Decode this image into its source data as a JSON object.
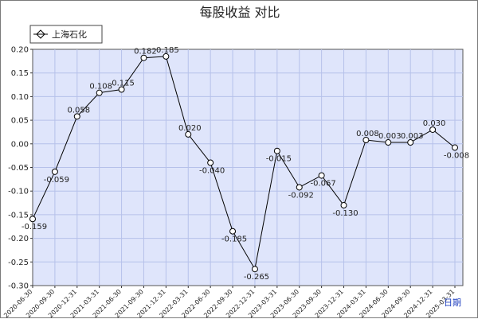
{
  "chart_data": {
    "type": "line",
    "title": "每股收益  对比",
    "xlabel": "日期",
    "ylabel": "",
    "ylim": [
      -0.3,
      0.2
    ],
    "yticks": [
      "0.20",
      "0.15",
      "0.10",
      "0.05",
      "0.00",
      "-0.05",
      "-0.10",
      "-0.15",
      "-0.20",
      "-0.25",
      "-0.30"
    ],
    "grid": true,
    "legend_position": "top-left",
    "colors": {
      "line": "#000000",
      "plot_bg": "#dfe5fb",
      "grid": "#b6c1ea"
    },
    "x": [
      "2020-06-30",
      "2020-09-30",
      "2020-12-31",
      "2021-03-31",
      "2021-06-30",
      "2021-09-30",
      "2021-12-31",
      "2022-03-31",
      "2022-06-30",
      "2022-09-30",
      "2022-12-31",
      "2023-03-31",
      "2023-06-30",
      "2023-09-30",
      "2023-12-31",
      "2024-03-31",
      "2024-06-30",
      "2024-09-30",
      "2024-12-31",
      "2025-03-31"
    ],
    "series": [
      {
        "name": "上海石化",
        "values": [
          -0.159,
          -0.059,
          0.058,
          0.108,
          0.115,
          0.182,
          0.185,
          0.02,
          -0.04,
          -0.185,
          -0.265,
          -0.015,
          -0.092,
          -0.067,
          -0.13,
          0.008,
          0.003,
          0.003,
          0.03,
          -0.008
        ],
        "labels": [
          "-0.159",
          "-0.059",
          "0.058",
          "0.108",
          "0.115",
          "0.182",
          "0.185",
          "0.020",
          "-0.040",
          "-0.185",
          "-0.265",
          "-0.015",
          "-0.092",
          "-0.067",
          "-0.130",
          "0.008",
          "0.003",
          "0.003",
          "0.030",
          "-0.008"
        ]
      }
    ]
  }
}
